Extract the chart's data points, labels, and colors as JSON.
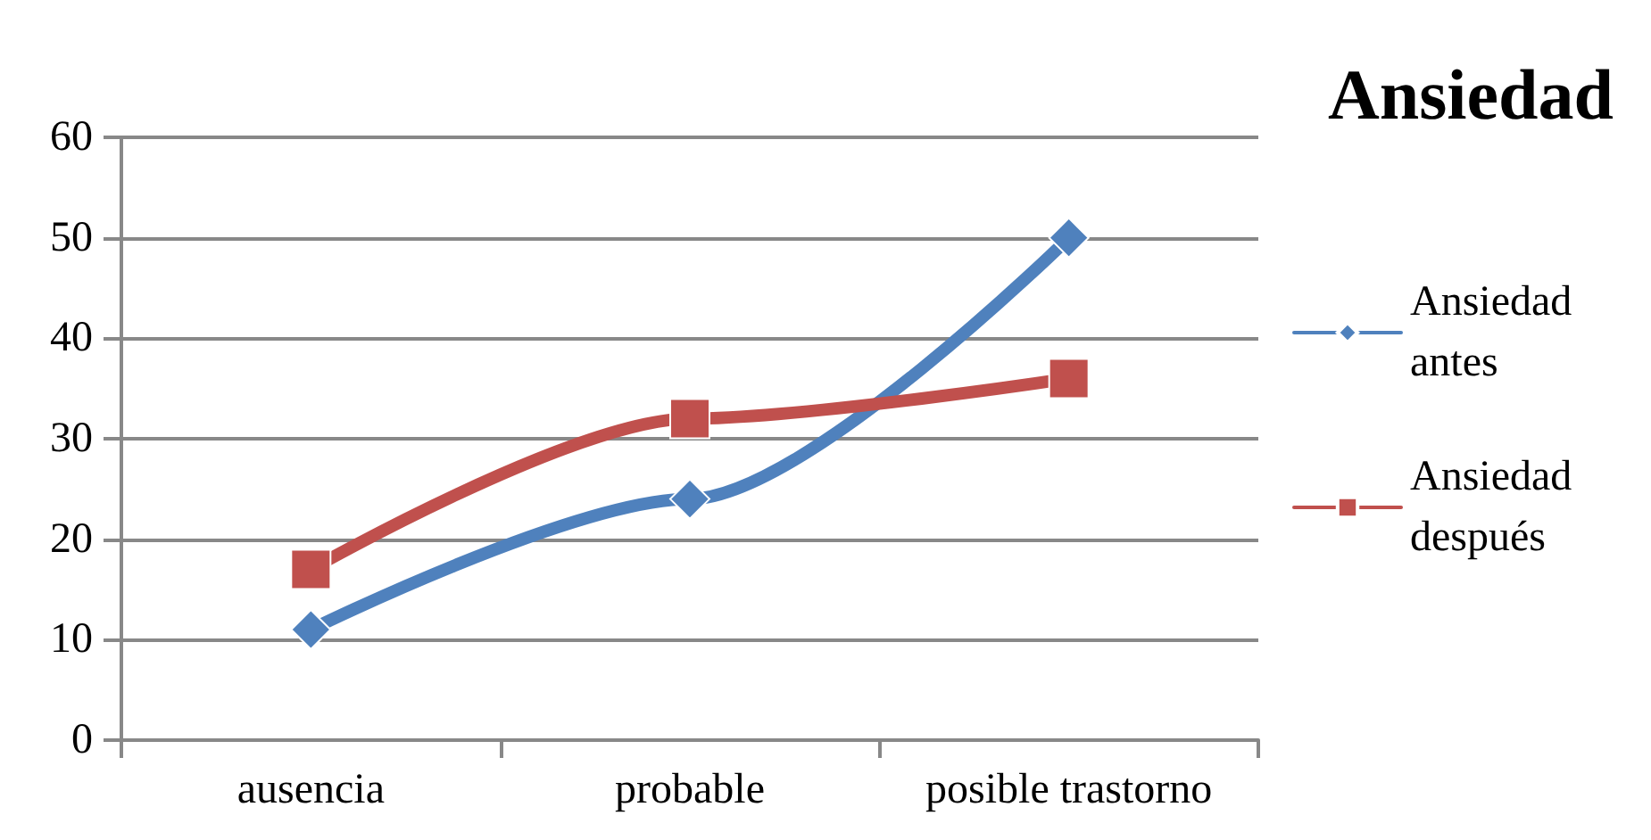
{
  "chart_data": {
    "type": "line",
    "title": "Ansiedad",
    "categories": [
      "ausencia",
      "probable",
      "posible trastorno"
    ],
    "series": [
      {
        "name": "Ansiedad antes",
        "color": "#4f81bd",
        "marker": "diamond",
        "values": [
          11,
          24,
          50
        ]
      },
      {
        "name": "Ansiedad después",
        "color": "#c0504d",
        "marker": "square",
        "values": [
          17,
          32,
          36
        ]
      }
    ],
    "ylim": [
      0,
      60
    ],
    "yticks": [
      0,
      10,
      20,
      30,
      40,
      50,
      60
    ],
    "grid": "y",
    "legend": "right"
  }
}
